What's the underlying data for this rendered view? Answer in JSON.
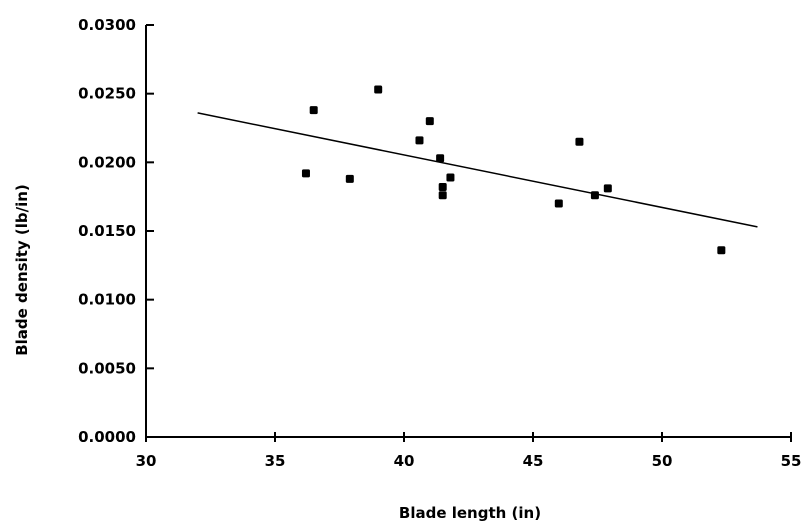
{
  "chart_data": {
    "type": "scatter",
    "xlabel": "Blade length (in)",
    "ylabel": "Blade density (lb/in)",
    "xlim": [
      30,
      55
    ],
    "ylim": [
      0.0,
      0.03
    ],
    "x_ticks": [
      "30",
      "35",
      "40",
      "45",
      "50",
      "55"
    ],
    "y_ticks": [
      "0.0000",
      "0.0050",
      "0.0100",
      "0.0150",
      "0.0200",
      "0.0250",
      "0.0300"
    ],
    "grid": false,
    "legend": "none",
    "series": [
      {
        "points": [
          [
            36.2,
            0.0192
          ],
          [
            36.5,
            0.0238
          ],
          [
            37.9,
            0.0188
          ],
          [
            39.0,
            0.0253
          ],
          [
            40.6,
            0.0216
          ],
          [
            41.0,
            0.023
          ],
          [
            41.4,
            0.0203
          ],
          [
            41.5,
            0.0182
          ],
          [
            41.5,
            0.0176
          ],
          [
            41.8,
            0.0189
          ],
          [
            46.0,
            0.017
          ],
          [
            46.8,
            0.0215
          ],
          [
            47.4,
            0.0176
          ],
          [
            47.9,
            0.0181
          ],
          [
            52.3,
            0.0136
          ]
        ]
      }
    ],
    "trendline": {
      "x": [
        32,
        53.7
      ],
      "y": [
        0.0236,
        0.0153
      ]
    }
  }
}
